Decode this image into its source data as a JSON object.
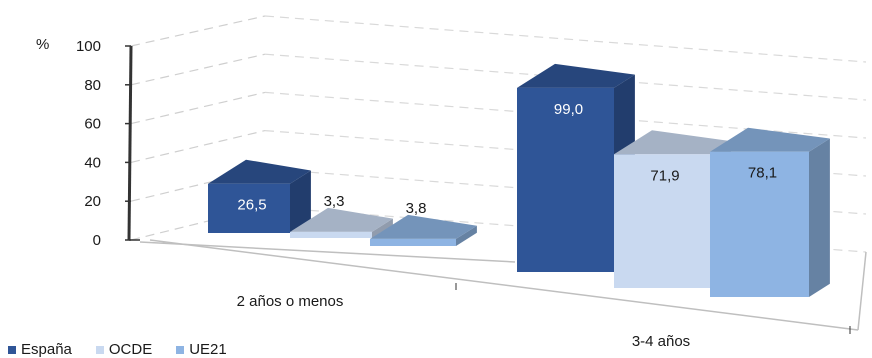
{
  "chart_data": {
    "type": "bar",
    "style": "3d-clustered-column",
    "ylabel": "%",
    "ylim": [
      0,
      100
    ],
    "yticks": [
      0,
      20,
      40,
      60,
      80,
      100
    ],
    "categories": [
      "2 años  o menos",
      "3-4 años"
    ],
    "series": [
      {
        "name": "España",
        "values": [
          26.5,
          99.0
        ],
        "labels": [
          "26,5",
          "99,0"
        ],
        "color": "#2f5597"
      },
      {
        "name": "OCDE",
        "values": [
          3.3,
          71.9
        ],
        "labels": [
          "3,3",
          "71,9"
        ],
        "color": "#c9d9f0"
      },
      {
        "name": "UE21",
        "values": [
          3.8,
          78.1
        ],
        "labels": [
          "3,8",
          "78,1"
        ],
        "color": "#8eb4e3"
      }
    ],
    "grid": true,
    "legend_position": "bottom-left"
  }
}
